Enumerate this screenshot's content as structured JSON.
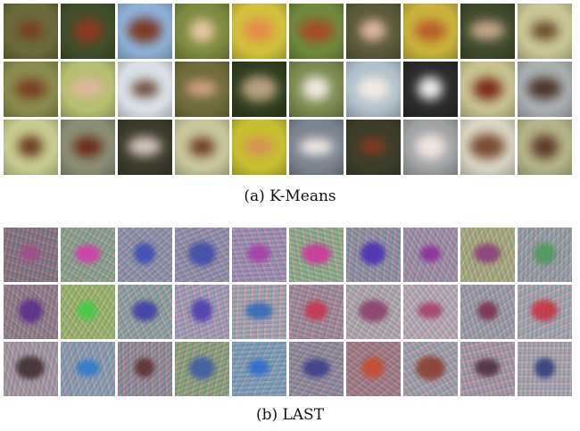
{
  "figure": {
    "panels": [
      {
        "caption": "(a) K-Means",
        "rows": [
          [
            {
              "bg": "#6b6a3a",
              "blob": "#7a3a1e"
            },
            {
              "bg": "#3f4f2a",
              "blob": "#8a3a22"
            },
            {
              "bg": "#8fb2d8",
              "blob": "#7a3a22"
            },
            {
              "bg": "#7c8a3f",
              "blob": "#e7c7a2"
            },
            {
              "bg": "#d2c23c",
              "blob": "#e78a4a"
            },
            {
              "bg": "#6f8a3a",
              "blob": "#a84a26"
            },
            {
              "bg": "#5a5a3a",
              "blob": "#e2b8a3"
            },
            {
              "bg": "#c9b33a",
              "blob": "#b85a2a"
            },
            {
              "bg": "#3e4a2c",
              "blob": "#c9a78c"
            },
            {
              "bg": "#c9c795",
              "blob": "#6a4a2c"
            }
          ],
          [
            {
              "bg": "#8a8c4e",
              "blob": "#7a3a22"
            },
            {
              "bg": "#b6bf70",
              "blob": "#e2b6a0"
            },
            {
              "bg": "#d9e1e7",
              "blob": "#6e4a3a"
            },
            {
              "bg": "#6f6c3a",
              "blob": "#d6a487"
            },
            {
              "bg": "#2f3d1f",
              "blob": "#b8a27f"
            },
            {
              "bg": "#7a8a4e",
              "blob": "#f0e8e2"
            },
            {
              "bg": "#b0c0ca",
              "blob": "#f3ebe5"
            },
            {
              "bg": "#2a2a2a",
              "blob": "#f0f0f0"
            },
            {
              "bg": "#c8c38f",
              "blob": "#7a2a1a"
            },
            {
              "bg": "#aab0b2",
              "blob": "#4a3328"
            }
          ],
          [
            {
              "bg": "#c8cc90",
              "blob": "#6c3a22"
            },
            {
              "bg": "#8b8f76",
              "blob": "#6a2a18"
            },
            {
              "bg": "#3b3b2c",
              "blob": "#d8c8bf"
            },
            {
              "bg": "#c8c79b",
              "blob": "#6e3a22"
            },
            {
              "bg": "#c6c02f",
              "blob": "#d98e5a"
            },
            {
              "bg": "#7b8490",
              "blob": "#f4ece8"
            },
            {
              "bg": "#3c3e2a",
              "blob": "#8a3a22"
            },
            {
              "bg": "#9fa2a4",
              "blob": "#f1e6e0"
            },
            {
              "bg": "#d9d6c4",
              "blob": "#7a4a32"
            },
            {
              "bg": "#b5b58a",
              "blob": "#5f3a2a"
            }
          ]
        ]
      },
      {
        "caption": "(b) LAST",
        "rows": [
          [
            {
              "bg": "#7d6f7a",
              "glow": "#a24a8c"
            },
            {
              "bg": "#8aa48c",
              "glow": "#d23aa8"
            },
            {
              "bg": "#8a94a6",
              "glow": "#3a4ab8"
            },
            {
              "bg": "#8e8fa8",
              "glow": "#3a4aa8"
            },
            {
              "bg": "#9b8fb0",
              "glow": "#a83aa8"
            },
            {
              "bg": "#8fb08a",
              "glow": "#d2309c"
            },
            {
              "bg": "#8d93a0",
              "glow": "#4a2ab8"
            },
            {
              "bg": "#9a90a4",
              "glow": "#8a2a9a"
            },
            {
              "bg": "#a6b07c",
              "glow": "#8a3a7a"
            },
            {
              "bg": "#94a2a4",
              "glow": "#4a9a5a"
            }
          ],
          [
            {
              "bg": "#8a7a84",
              "glow": "#5a2a8a"
            },
            {
              "bg": "#9abb6a",
              "glow": "#3ad040"
            },
            {
              "bg": "#8fa4a0",
              "glow": "#3a3aa8"
            },
            {
              "bg": "#a39fb6",
              "glow": "#4a3ab0"
            },
            {
              "bg": "#a8a8b0",
              "glow": "#2a6ab8"
            },
            {
              "bg": "#9d8a96",
              "glow": "#c8304a"
            },
            {
              "bg": "#b0aeb0",
              "glow": "#8a3a6a"
            },
            {
              "bg": "#b8b0b8",
              "glow": "#a83a6a"
            },
            {
              "bg": "#9aa0a8",
              "glow": "#7a2a4a"
            },
            {
              "bg": "#a4aab0",
              "glow": "#c8303a"
            }
          ],
          [
            {
              "bg": "#a29aa2",
              "glow": "#3a2a2a"
            },
            {
              "bg": "#8aa0b0",
              "glow": "#2a7ad0"
            },
            {
              "bg": "#8d8a94",
              "glow": "#5a2a2a"
            },
            {
              "bg": "#8aa278",
              "glow": "#3a5aa8"
            },
            {
              "bg": "#7aa0b8",
              "glow": "#2a6ad0"
            },
            {
              "bg": "#8b8a98",
              "glow": "#3a3a8a"
            },
            {
              "bg": "#9b7a80",
              "glow": "#c84a2a"
            },
            {
              "bg": "#a0a4aa",
              "glow": "#8a3a2a"
            },
            {
              "bg": "#a59aa4",
              "glow": "#4a2a3a"
            },
            {
              "bg": "#a8aab0",
              "glow": "#2a3a7a"
            }
          ]
        ]
      }
    ]
  }
}
